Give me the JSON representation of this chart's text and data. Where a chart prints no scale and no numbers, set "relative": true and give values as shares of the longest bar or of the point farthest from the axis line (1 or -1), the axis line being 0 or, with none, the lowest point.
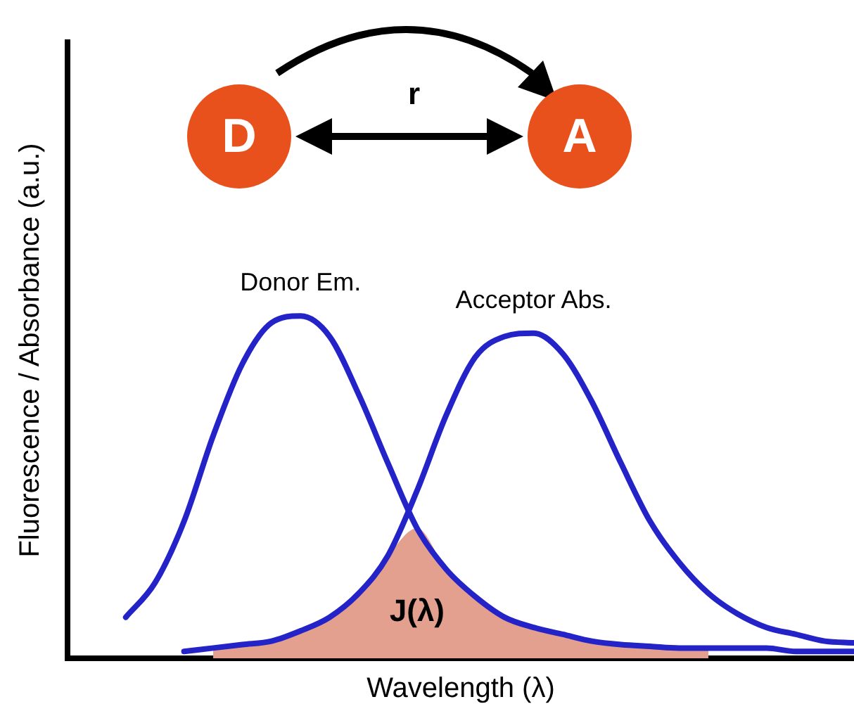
{
  "chart_data": {
    "type": "line",
    "relative": true,
    "xlabel": "Wavelength (λ)",
    "ylabel": "Fluorescence / Absorbance (a.u.)",
    "annotations": [
      "D",
      "A",
      "r"
    ],
    "legend": false,
    "grid": false,
    "marker": "none",
    "line_style": "solid",
    "categories": [
      null,
      null,
      null,
      null,
      null,
      null,
      null,
      null,
      null,
      null,
      null,
      null,
      null,
      null,
      null,
      null,
      null,
      null,
      null,
      null,
      null,
      null,
      null,
      null,
      null,
      null,
      null,
      null
    ],
    "series": [
      {
        "name": "J(λ)",
        "type": "area",
        "color": "#e3a08f",
        "values": [
          null,
          null,
          null,
          null,
          null,
          0.03,
          0.04,
          0.05,
          0.08,
          0.12,
          0.19,
          0.3,
          0.38,
          0.26,
          0.18,
          0.12,
          0.09,
          0.07,
          0.05,
          0.04,
          0.035,
          0.03,
          0.03,
          null,
          null,
          null,
          null,
          null
        ]
      },
      {
        "name": "Donor Em.",
        "color": "#2323c8",
        "values": [
          null,
          null,
          0.12,
          0.22,
          0.4,
          0.65,
          0.86,
          0.98,
          1,
          0.94,
          0.77,
          0.57,
          0.38,
          0.26,
          0.18,
          0.12,
          0.09,
          0.07,
          0.05,
          0.04,
          0.035,
          0.03,
          0.03,
          0.03,
          0.03,
          0.02,
          0.02,
          0.02
        ]
      },
      {
        "name": "Acceptor Abs.",
        "color": "#2323c8",
        "values": [
          null,
          null,
          null,
          null,
          0.02,
          0.03,
          0.04,
          0.05,
          0.08,
          0.12,
          0.19,
          0.3,
          0.49,
          0.71,
          0.88,
          0.94,
          0.95,
          0.89,
          0.75,
          0.57,
          0.4,
          0.28,
          0.19,
          0.13,
          0.09,
          0.07,
          0.05,
          0.045
        ]
      }
    ]
  }
}
